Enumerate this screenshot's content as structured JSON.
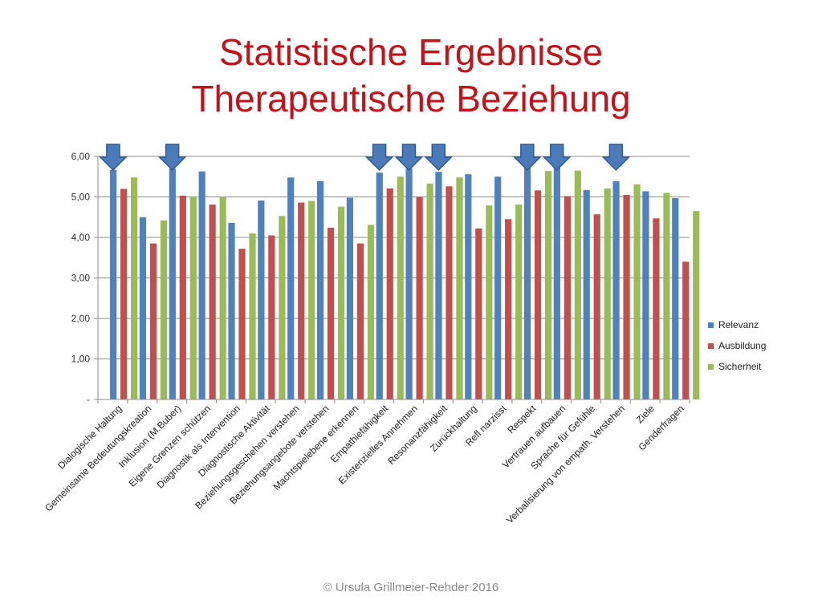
{
  "slide": {
    "title_line1": "Statistische Ergebnisse",
    "title_line2": "Therapeutische Beziehung",
    "footer": "© Ursula Grillmeier-Rehder 2016"
  },
  "chart_data": {
    "type": "bar",
    "categories": [
      "Dialogische Haltung",
      "Gemeinsame Bedeutungskreation",
      "Inklusion (M.Buber)",
      "Eigene Grenzen schützen",
      "Diagnostik als Intervention",
      "Diagnostische Aktivität",
      "Beziehungsgeschehen verstehen",
      "Beziehungsangebote verstehen",
      "Machtspielebene erkennen",
      "Empathiefähigkeit",
      "Existenzielles Annehmen",
      "Resonanzfähigkeit",
      "Zurückhaltung",
      "Refl narzisst",
      "Respekt",
      "Vertrauen aufbauen",
      "Sprache für Gefühle",
      "Verbalisierung von empath. Verstehen",
      "Ziele",
      "Genderfragen"
    ],
    "series": [
      {
        "name": "Relevanz",
        "color": "#4f81bd",
        "values": [
          5.67,
          4.5,
          5.7,
          5.63,
          4.36,
          4.91,
          5.48,
          5.39,
          4.98,
          5.6,
          5.7,
          5.62,
          5.56,
          5.5,
          5.88,
          5.92,
          5.17,
          5.39,
          5.14,
          4.97
        ]
      },
      {
        "name": "Ausbildung",
        "color": "#c0504d",
        "values": [
          5.2,
          3.85,
          5.03,
          4.81,
          3.72,
          4.05,
          4.86,
          4.24,
          3.85,
          5.21,
          5.0,
          5.26,
          4.22,
          4.45,
          5.16,
          5.02,
          4.57,
          5.05,
          4.47,
          3.4
        ]
      },
      {
        "name": "Sicherheit",
        "color": "#9bbb59",
        "values": [
          5.48,
          4.42,
          5.0,
          5.0,
          4.1,
          4.53,
          4.9,
          4.76,
          4.31,
          5.5,
          5.33,
          5.48,
          4.79,
          4.81,
          5.64,
          5.65,
          5.21,
          5.31,
          5.1,
          4.65
        ]
      }
    ],
    "yticks": [
      "-",
      "1,00",
      "2,00",
      "3,00",
      "4,00",
      "5,00",
      "6,00"
    ],
    "ylim": [
      0,
      6
    ],
    "grid": true,
    "legend_position": "right",
    "arrow_color": "#4a7ab8",
    "arrow_categories": [
      "Dialogische Haltung",
      "Inklusion (M.Buber)",
      "Empathiefähigkeit",
      "Existenzielles Annehmen",
      "Resonanzfähigkeit",
      "Respekt",
      "Vertrauen aufbauen",
      "Verbalisierung von empath. Verstehen"
    ]
  }
}
